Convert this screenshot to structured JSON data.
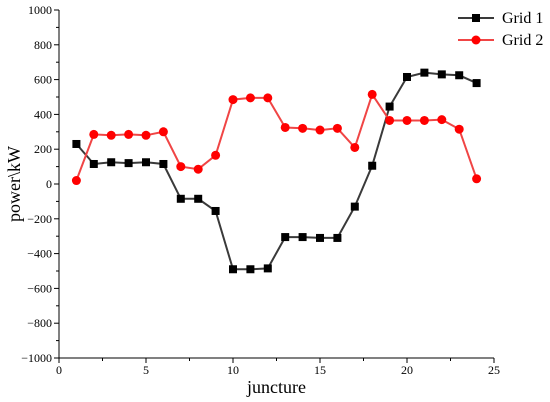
{
  "chart_data": {
    "type": "line",
    "title": "",
    "xlabel": "juncture",
    "ylabel": "power\\kW",
    "xlim": [
      0,
      25
    ],
    "ylim": [
      -1000,
      1000
    ],
    "xticks": [
      0,
      5,
      10,
      15,
      20,
      25
    ],
    "yticks": [
      -1000,
      -800,
      -600,
      -400,
      -200,
      0,
      200,
      400,
      600,
      800,
      1000
    ],
    "grid": false,
    "legend": "top-right",
    "x": [
      1,
      2,
      3,
      4,
      5,
      6,
      7,
      8,
      9,
      10,
      11,
      12,
      13,
      14,
      15,
      16,
      17,
      18,
      19,
      20,
      21,
      22,
      23,
      24
    ],
    "series": [
      {
        "name": "Grid 1",
        "color": "#000000",
        "marker": "square",
        "line_color": "#3a3a3a",
        "values": [
          230,
          115,
          125,
          120,
          125,
          115,
          -85,
          -85,
          -155,
          -490,
          -490,
          -485,
          -305,
          -305,
          -310,
          -310,
          -130,
          105,
          445,
          615,
          640,
          630,
          625,
          580
        ]
      },
      {
        "name": "Grid 2",
        "color": "#ff0000",
        "marker": "circle",
        "line_color": "#f04545",
        "values": [
          20,
          285,
          280,
          285,
          280,
          300,
          100,
          85,
          165,
          485,
          495,
          495,
          325,
          320,
          310,
          320,
          210,
          515,
          365,
          365,
          365,
          370,
          315,
          30
        ]
      }
    ]
  }
}
